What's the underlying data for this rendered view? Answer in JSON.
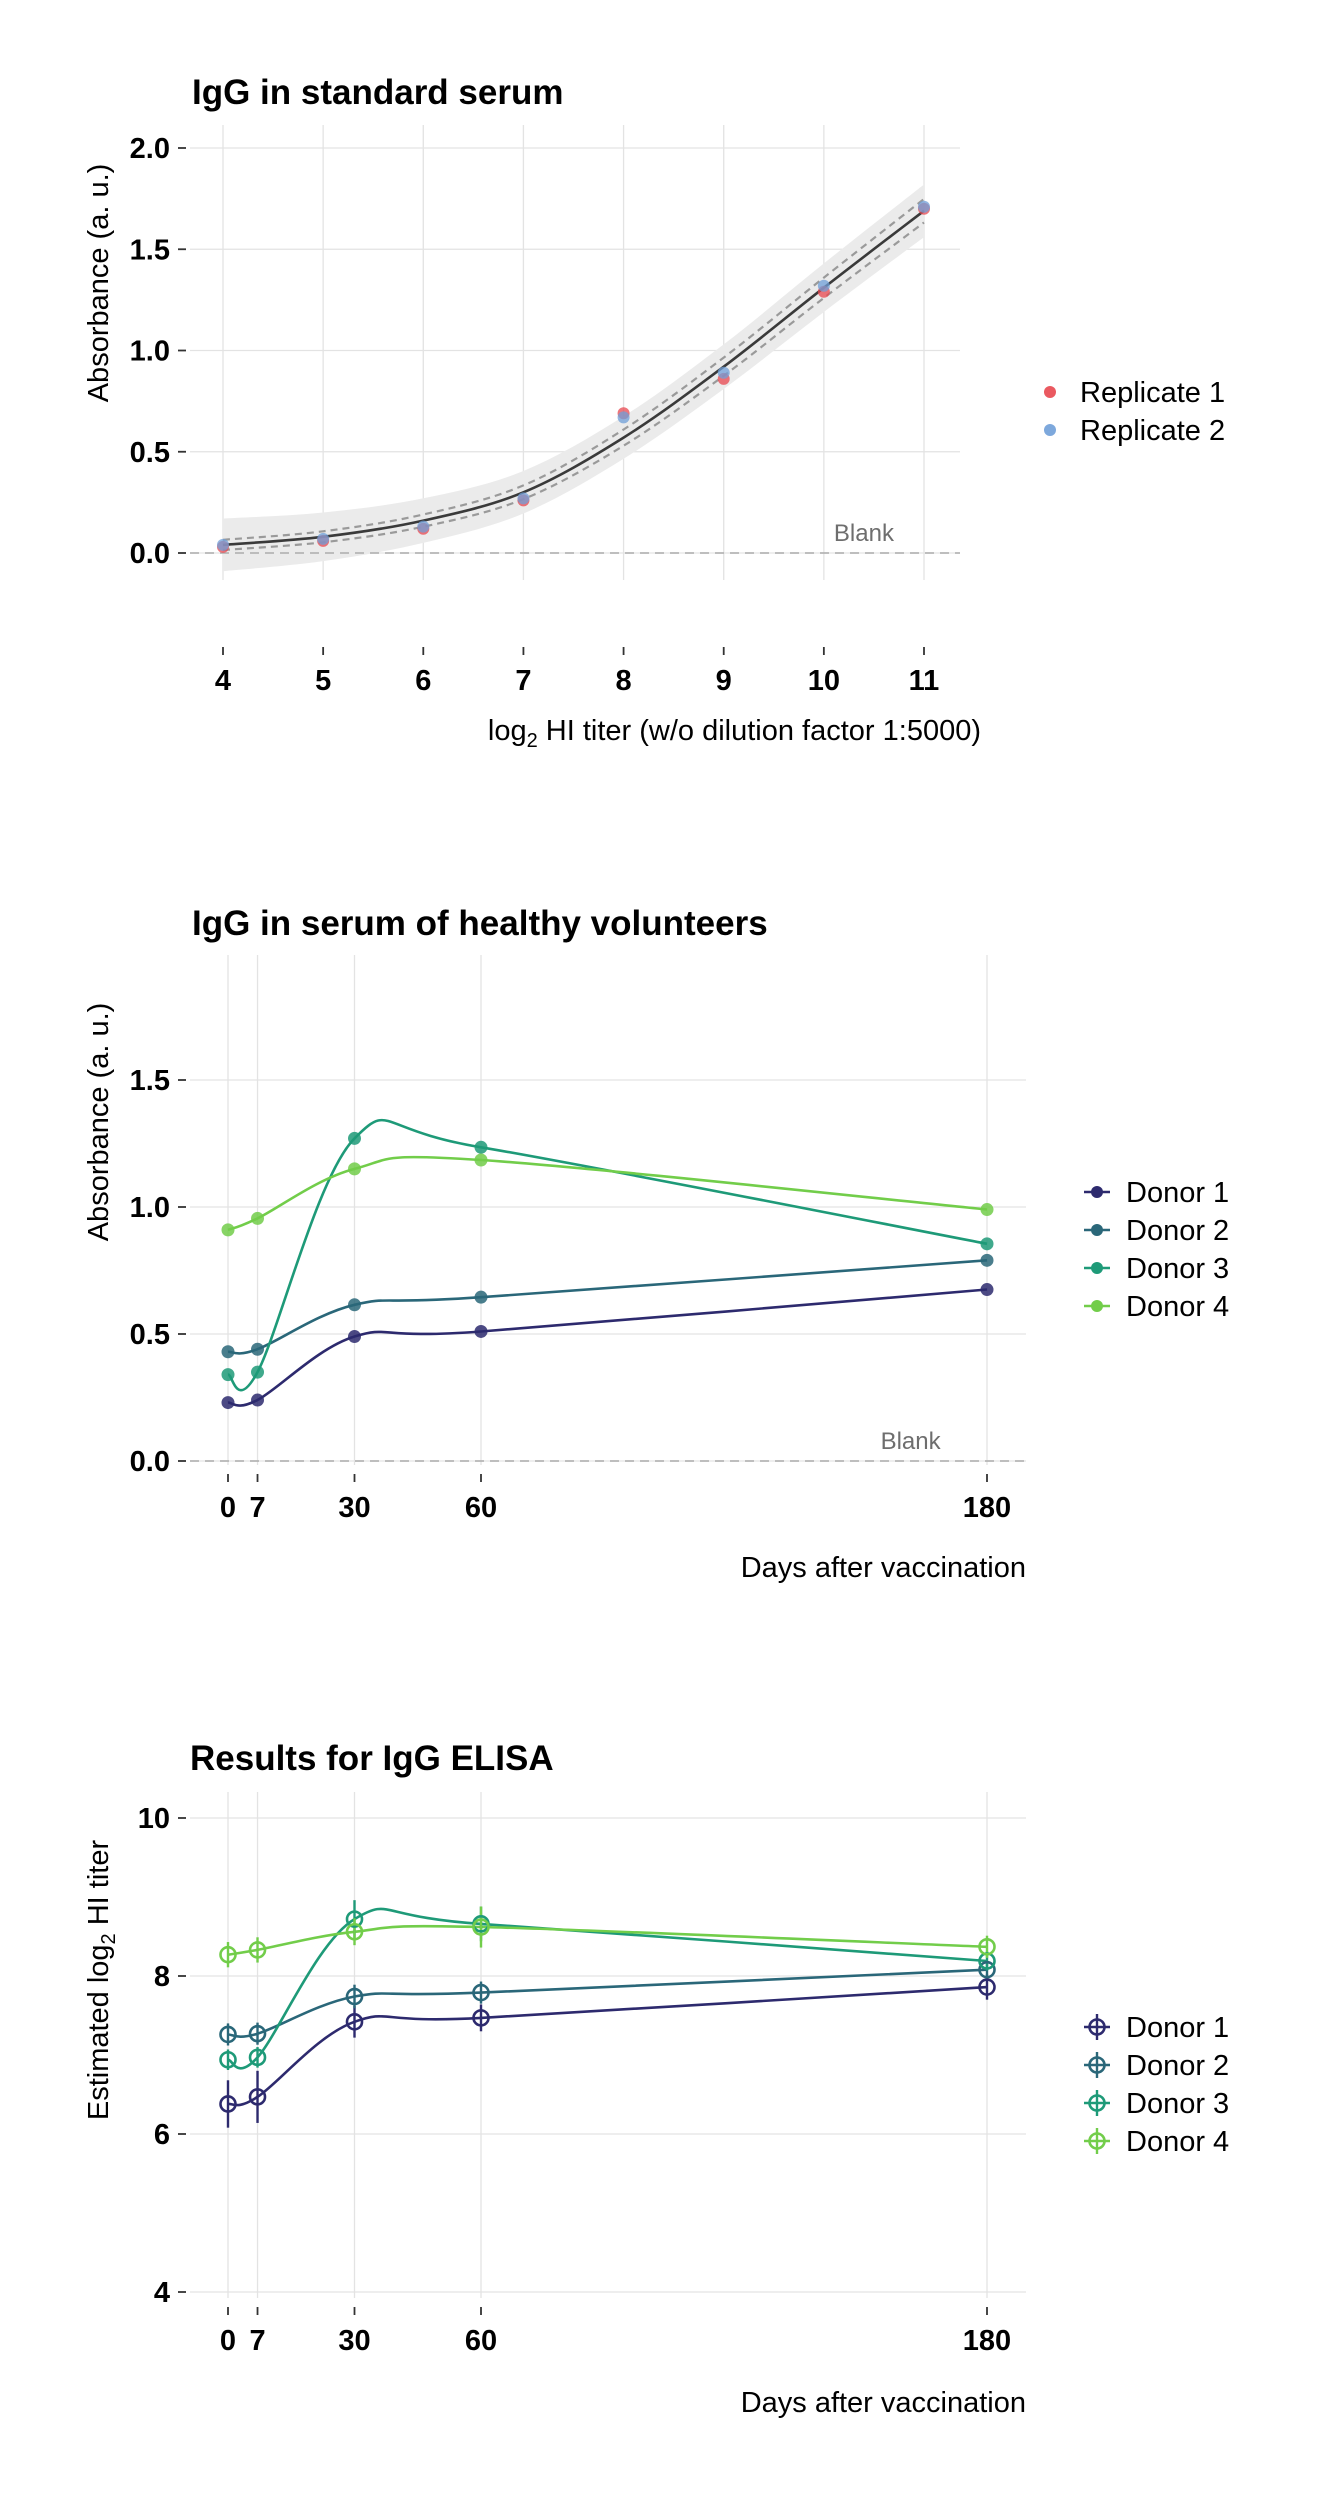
{
  "colors": {
    "replicate1": "#e8474f",
    "replicate2": "#6f9fd8",
    "overlap": "#5a5891",
    "fit": "#3a3a3a",
    "ci": "#9a9a9a",
    "band": "#ebebeb",
    "grid": "#e3e3e3",
    "blank_line": "#b5b5b5",
    "donors": [
      "#2d2a6e",
      "#2a6779",
      "#1e9a78",
      "#72cd4a"
    ]
  },
  "chart_data": [
    {
      "type": "scatter",
      "title": "IgG in standard serum",
      "xlabel_pre": "log",
      "xlabel_sub": "2",
      "xlabel_post": " HI titer (w/o dilution factor 1:5000)",
      "ylabel": "Absorbance (a. u.)",
      "xlim": [
        3.75,
        11.35
      ],
      "ylim": [
        -0.45,
        2.1
      ],
      "xticks": [
        4,
        5,
        6,
        7,
        8,
        9,
        10,
        11
      ],
      "xtick_labels": [
        "4",
        "5",
        "6",
        "7",
        "8",
        "9",
        "10",
        "11"
      ],
      "yticks": [
        0,
        0.5,
        1.0,
        1.5,
        2.0
      ],
      "ytick_labels": [
        "0.0",
        "0.5",
        "1.0",
        "1.5",
        "2.0"
      ],
      "blank_label": "Blank",
      "blank_y": 0,
      "fit": {
        "x": [
          4,
          5,
          6,
          7,
          8,
          9,
          10,
          11
        ],
        "y": [
          0.04,
          0.08,
          0.16,
          0.3,
          0.57,
          0.92,
          1.31,
          1.69
        ],
        "ci_half": [
          0.025,
          0.027,
          0.03,
          0.034,
          0.04,
          0.045,
          0.05,
          0.058
        ],
        "band_half": [
          0.13,
          0.12,
          0.11,
          0.105,
          0.105,
          0.11,
          0.12,
          0.13
        ]
      },
      "series": [
        {
          "name": "Replicate 1",
          "x": [
            4,
            5,
            6,
            7,
            8,
            9,
            10,
            11
          ],
          "y": [
            0.03,
            0.06,
            0.12,
            0.26,
            0.69,
            0.86,
            1.29,
            1.7
          ]
        },
        {
          "name": "Replicate 2",
          "x": [
            4,
            5,
            6,
            7,
            8,
            9,
            10,
            11
          ],
          "y": [
            0.04,
            0.07,
            0.13,
            0.27,
            0.67,
            0.89,
            1.32,
            1.71
          ]
        }
      ],
      "legend_position": "right"
    },
    {
      "type": "line",
      "title": "IgG in serum of healthy volunteers",
      "xlabel": "Days after vaccination",
      "ylabel": "Absorbance (a. u.)",
      "xlim": [
        -4,
        190
      ],
      "ylim": [
        -0.08,
        1.97
      ],
      "xticks": [
        0,
        7,
        30,
        60,
        180
      ],
      "xtick_labels": [
        "0",
        "7",
        "30",
        "60",
        "180"
      ],
      "yticks": [
        0,
        0.5,
        1.0,
        1.5
      ],
      "ytick_labels": [
        "0.0",
        "0.5",
        "1.0",
        "1.5"
      ],
      "blank_label": "Blank",
      "blank_y": 0,
      "x": [
        0,
        7,
        30,
        60,
        180
      ],
      "series": [
        {
          "name": "Donor 1",
          "values": [
            0.23,
            0.24,
            0.49,
            0.51,
            0.675
          ]
        },
        {
          "name": "Donor 2",
          "values": [
            0.43,
            0.44,
            0.615,
            0.645,
            0.79
          ]
        },
        {
          "name": "Donor 3",
          "values": [
            0.34,
            0.35,
            1.27,
            1.235,
            0.855
          ]
        },
        {
          "name": "Donor 4",
          "values": [
            0.91,
            0.955,
            1.15,
            1.185,
            0.99
          ]
        }
      ],
      "legend_position": "right"
    },
    {
      "type": "line",
      "title": "Results for IgG ELISA",
      "xlabel": "Days after vaccination",
      "ylabel_pre": "Estimated log",
      "ylabel_sub": "2",
      "ylabel_post": " HI titer",
      "xlim": [
        -4,
        190
      ],
      "ylim": [
        3.95,
        10.3
      ],
      "xticks": [
        0,
        7,
        30,
        60,
        180
      ],
      "xtick_labels": [
        "0",
        "7",
        "30",
        "60",
        "180"
      ],
      "yticks": [
        4,
        6,
        8,
        10
      ],
      "ytick_labels": [
        "4",
        "6",
        "8",
        "10"
      ],
      "x": [
        0,
        7,
        30,
        60,
        180
      ],
      "series": [
        {
          "name": "Donor 1",
          "values": [
            6.38,
            6.47,
            7.42,
            7.47,
            7.86
          ],
          "err": [
            0.3,
            0.33,
            0.2,
            0.17,
            0.16
          ]
        },
        {
          "name": "Donor 2",
          "values": [
            7.26,
            7.27,
            7.74,
            7.79,
            8.08
          ],
          "err": [
            0.14,
            0.14,
            0.15,
            0.14,
            0.1
          ]
        },
        {
          "name": "Donor 3",
          "values": [
            6.94,
            6.97,
            8.72,
            8.66,
            8.19
          ],
          "err": [
            0.13,
            0.13,
            0.24,
            0.22,
            0.12
          ]
        },
        {
          "name": "Donor 4",
          "values": [
            8.27,
            8.33,
            8.56,
            8.62,
            8.37
          ],
          "err": [
            0.16,
            0.16,
            0.17,
            0.26,
            0.14
          ]
        }
      ],
      "legend_position": "right"
    }
  ]
}
